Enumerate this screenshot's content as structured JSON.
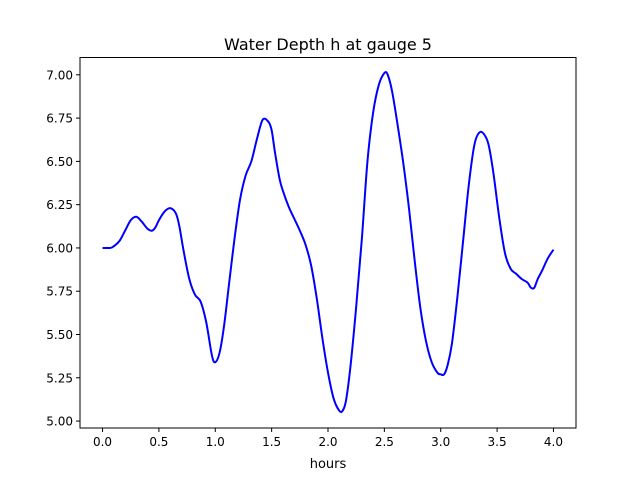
{
  "chart_data": {
    "type": "line",
    "title": "Water Depth h at gauge 5",
    "xlabel": "hours",
    "ylabel": "",
    "xlim": [
      -0.2,
      4.2
    ],
    "ylim": [
      4.96,
      7.1
    ],
    "xticks": [
      0.0,
      0.5,
      1.0,
      1.5,
      2.0,
      2.5,
      3.0,
      3.5,
      4.0
    ],
    "xtick_labels": [
      "0.0",
      "0.5",
      "1.0",
      "1.5",
      "2.0",
      "2.5",
      "3.0",
      "3.5",
      "4.0"
    ],
    "yticks": [
      5.0,
      5.25,
      5.5,
      5.75,
      6.0,
      6.25,
      6.5,
      6.75,
      7.0
    ],
    "ytick_labels": [
      "5.00",
      "5.25",
      "5.50",
      "5.75",
      "6.00",
      "6.25",
      "6.50",
      "6.75",
      "7.00"
    ],
    "grid": false,
    "line_color": "#0000ff",
    "series": [
      {
        "x": [
          0.0,
          0.07,
          0.1,
          0.15,
          0.2,
          0.25,
          0.3,
          0.35,
          0.4,
          0.44,
          0.47,
          0.5,
          0.55,
          0.6,
          0.65,
          0.68,
          0.72,
          0.77,
          0.82,
          0.87,
          0.92,
          0.97,
          1.0,
          1.04,
          1.08,
          1.12,
          1.17,
          1.22,
          1.27,
          1.32,
          1.37,
          1.42,
          1.47,
          1.5,
          1.53,
          1.57,
          1.6,
          1.65,
          1.7,
          1.75,
          1.8,
          1.85,
          1.9,
          1.95,
          2.0,
          2.05,
          2.1,
          2.13,
          2.16,
          2.2,
          2.25,
          2.3,
          2.35,
          2.4,
          2.45,
          2.5,
          2.53,
          2.57,
          2.62,
          2.67,
          2.72,
          2.77,
          2.82,
          2.87,
          2.92,
          2.97,
          3.0,
          3.03,
          3.06,
          3.1,
          3.15,
          3.2,
          3.25,
          3.3,
          3.35,
          3.4,
          3.43,
          3.47,
          3.52,
          3.57,
          3.62,
          3.67,
          3.72,
          3.77,
          3.8,
          3.83,
          3.86,
          3.9,
          3.95,
          4.0
        ],
        "y": [
          6.0,
          6.0,
          6.01,
          6.04,
          6.1,
          6.16,
          6.18,
          6.15,
          6.11,
          6.1,
          6.12,
          6.16,
          6.21,
          6.23,
          6.2,
          6.13,
          5.98,
          5.82,
          5.73,
          5.69,
          5.57,
          5.38,
          5.34,
          5.4,
          5.56,
          5.78,
          6.05,
          6.28,
          6.42,
          6.5,
          6.63,
          6.74,
          6.73,
          6.68,
          6.55,
          6.4,
          6.33,
          6.24,
          6.17,
          6.1,
          6.02,
          5.9,
          5.71,
          5.48,
          5.28,
          5.13,
          5.06,
          5.06,
          5.12,
          5.32,
          5.66,
          6.05,
          6.5,
          6.78,
          6.94,
          7.01,
          7.0,
          6.9,
          6.7,
          6.48,
          6.22,
          5.92,
          5.65,
          5.46,
          5.34,
          5.28,
          5.27,
          5.27,
          5.32,
          5.45,
          5.73,
          6.05,
          6.37,
          6.6,
          6.67,
          6.64,
          6.58,
          6.42,
          6.17,
          5.97,
          5.88,
          5.85,
          5.82,
          5.8,
          5.77,
          5.77,
          5.82,
          5.87,
          5.94,
          5.99
        ]
      }
    ]
  }
}
